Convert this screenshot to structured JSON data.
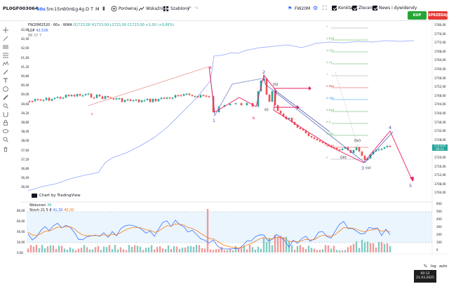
{
  "symbol": "PL0GF003064",
  "timeframes": [
    "60s",
    "5m",
    "15m",
    "30m",
    "1g",
    "4g",
    "D",
    "T",
    "M"
  ],
  "active_timeframe": "60s",
  "toolbar": {
    "compare_label": "Porównaj",
    "indicators_label": "Wskaźniki",
    "templates_label": "Szablony",
    "instrument_label": "FW20M"
  },
  "checkboxes": [
    {
      "label": "Konkta",
      "checked": true
    },
    {
      "label": "Zlecenia",
      "checked": true
    },
    {
      "label": "News i dywidendy",
      "checked": true
    }
  ],
  "buttons": {
    "buy": "KUP",
    "sell": "SPRZEDAJ"
  },
  "legend": {
    "title": "FW20M2520 · 60s · WWA",
    "ohlc": "O1723,00 H1723,00 L1723,00 C1723,00 +1,00 (+0,06%)",
    "lop_label": "LOP",
    "lop_value": "42,53K",
    "vol_label": "88 37 7"
  },
  "indicator_legend": {
    "volume_label": "Wolumen",
    "volume_value": "39",
    "stoch_label": "Stoch 21 5 8",
    "stoch_k": "41,30",
    "stoch_d": "40,20"
  },
  "tv_attribution": "Chart by TradingView",
  "price_axis": [
    "1780,00",
    "1776,00",
    "1772,00",
    "1768,00",
    "1764,00",
    "1760,00",
    "1756,00",
    "1752,00",
    "1748,00",
    "1744,00",
    "1740,00",
    "1736,00",
    "1732,00",
    "1728,00",
    "1724,00",
    "1720,00",
    "1716,00",
    "1712,00",
    "1708,00",
    "1704,00"
  ],
  "current_price": "1723,00",
  "current_time": "00:11",
  "left_axis": [
    "42,80",
    "42,40",
    "42,00",
    "41,60",
    "41,20",
    "40,80",
    "40,40",
    "40,00",
    "39,60",
    "39,20",
    "38,80",
    "38,40",
    "38,00",
    "37,60",
    "37,20",
    "36,80",
    "36,40",
    "36,00"
  ],
  "indicator_axis_left": [
    "80,00",
    "60,00",
    "40,00",
    "20,00",
    "0,00"
  ],
  "indicator_axis_right": [
    "600",
    "500",
    "400",
    "300",
    "200",
    "100",
    "0"
  ],
  "wave_labels": [
    "1",
    "2",
    "3",
    "4",
    "5",
    "a",
    "b",
    "c",
    "(i)",
    "(ii)",
    "(iii)",
    "(iv)",
    "(v)"
  ],
  "fib_labels": [
    "2",
    "1,618",
    "1,272",
    "1,13",
    "1",
    "0,886",
    "0,786",
    "0,618",
    "0,5",
    "0,382",
    "0,236",
    "0"
  ],
  "bottom_controls": [
    "%",
    "log",
    "auto"
  ],
  "clock": {
    "time": "00:12",
    "date": "21.03.2025"
  },
  "colors": {
    "up": "#26a69a",
    "down": "#ef5350",
    "stoch_k": "#2962ff",
    "stoch_d": "#ff6d00",
    "buy": "#26a637",
    "sell": "#e53935"
  }
}
